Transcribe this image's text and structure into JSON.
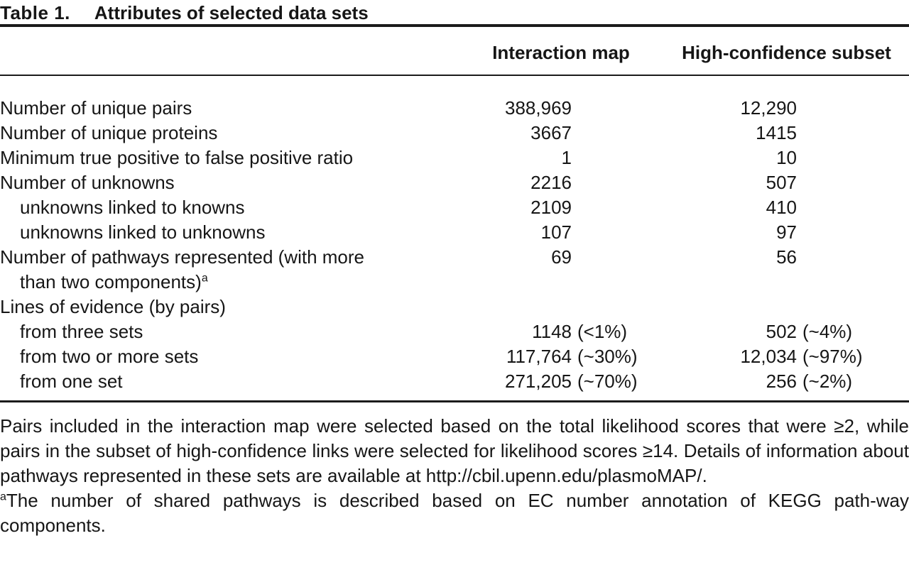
{
  "figure": {
    "title_label": "Table 1.",
    "title_text": "Attributes of selected data sets",
    "columns": [
      "Interaction map",
      "High-confidence subset"
    ],
    "rows": [
      {
        "label": "Number of unique pairs",
        "c1": "388,969",
        "c2": "12,290"
      },
      {
        "label": "Number of unique proteins",
        "c1": "3667",
        "c2": "1415"
      },
      {
        "label": "Minimum true positive to false positive ratio",
        "c1": "1",
        "c2": "10"
      },
      {
        "label": "Number of unknowns",
        "c1": "2216",
        "c2": "507"
      },
      {
        "label": "unknowns linked to knowns",
        "c1": "2109",
        "c2": "410"
      },
      {
        "label": "unknowns linked to unknowns",
        "c1": "107",
        "c2": "97"
      },
      {
        "label_lines": [
          "Number of pathways represented (with more",
          "than two components)"
        ],
        "sup": "a",
        "c1": "69",
        "c2": "56"
      },
      {
        "label": "Lines of evidence (by pairs)",
        "c1": "",
        "c2": ""
      },
      {
        "label": "from three sets",
        "c1": "1148",
        "c1_suffix": "(<1%)",
        "c2": "502",
        "c2_suffix": "(~4%)"
      },
      {
        "label": "from two or more sets",
        "c1": "117,764",
        "c1_suffix": "(~30%)",
        "c2": "12,034",
        "c2_suffix": "(~97%)"
      },
      {
        "label": "from one set",
        "c1": "271,205",
        "c1_suffix": "(~70%)",
        "c2": "256",
        "c2_suffix": "(~2%)"
      }
    ],
    "notes": [
      {
        "text": "Pairs included in the interaction map were selected based on the total likelihood scores that were ≥2, while pairs in the subset of high-confidence links were selected for likelihood scores ≥14. Details of information about pathways represented in these sets are available at http://cbil.upenn.edu/plasmoMAP/."
      },
      {
        "sup": "a",
        "text": "The number of shared pathways is described based on EC number annotation of KEGG path-way components."
      }
    ]
  }
}
